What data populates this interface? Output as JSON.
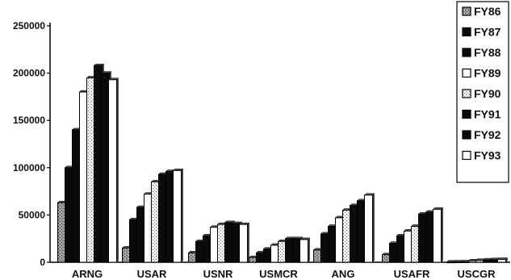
{
  "chart_data": {
    "type": "bar",
    "title": "",
    "xlabel": "",
    "ylabel": "",
    "ylim": [
      0,
      250000
    ],
    "ytick_labels": [
      "0",
      "50000",
      "100000",
      "150000",
      "200000",
      "250000"
    ],
    "yticks": [
      0,
      50000,
      100000,
      150000,
      200000,
      250000
    ],
    "grid": false,
    "legend_position": "top-right",
    "categories": [
      "ARNG",
      "USAR",
      "USNR",
      "USMCR",
      "ANG",
      "USAFR",
      "USCGR"
    ],
    "series": [
      {
        "name": "FY86",
        "style": "gray-speckle",
        "values": [
          63000,
          15000,
          10000,
          5000,
          13000,
          8000,
          300
        ]
      },
      {
        "name": "FY87",
        "style": "black",
        "values": [
          100000,
          45000,
          22000,
          10000,
          30000,
          20000,
          400
        ]
      },
      {
        "name": "FY88",
        "style": "black",
        "values": [
          140000,
          58000,
          28000,
          14000,
          38000,
          28000,
          500
        ]
      },
      {
        "name": "FY89",
        "style": "white",
        "values": [
          180000,
          72000,
          37000,
          18000,
          47000,
          33000,
          1500
        ]
      },
      {
        "name": "FY90",
        "style": "white-speckle",
        "values": [
          195000,
          85000,
          40000,
          22000,
          55000,
          38000,
          2000
        ]
      },
      {
        "name": "FY91",
        "style": "black",
        "values": [
          208000,
          93000,
          42000,
          25000,
          60000,
          51000,
          2500
        ]
      },
      {
        "name": "FY92",
        "style": "black",
        "values": [
          200000,
          96000,
          41000,
          25000,
          65000,
          53000,
          2800
        ]
      },
      {
        "name": "FY93",
        "style": "white",
        "values": [
          193000,
          97000,
          40000,
          24000,
          71000,
          56000,
          3000
        ]
      }
    ]
  }
}
